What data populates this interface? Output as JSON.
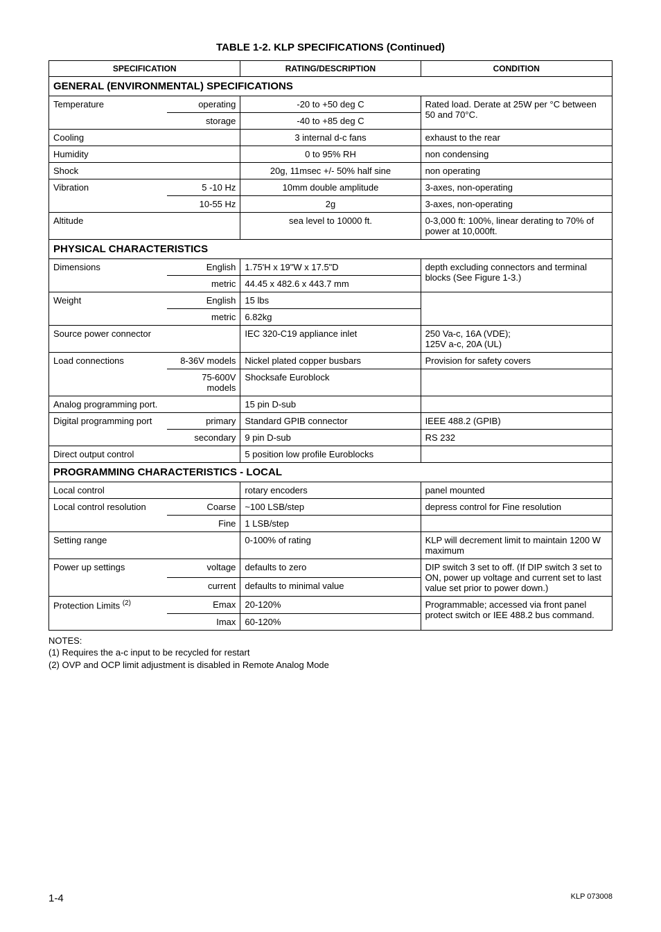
{
  "title": "TABLE 1-2.  KLP SPECIFICATIONS  (Continued)",
  "headers": {
    "spec": "SPECIFICATION",
    "rating": "RATING/DESCRIPTION",
    "condition": "CONDITION"
  },
  "sections": {
    "env": "GENERAL (ENVIRONMENTAL) SPECIFICATIONS",
    "phys": "PHYSICAL CHARACTERISTICS",
    "prog": "PROGRAMMING CHARACTERISTICS - LOCAL"
  },
  "rows": {
    "temp_spec": "Temperature",
    "temp_op_sub": "operating",
    "temp_op_val": "-20 to +50 deg C",
    "temp_cond": "Rated load. Derate at 25W per °C between 50 and 70°C.",
    "temp_st_sub": "storage",
    "temp_st_val": "-40 to +85 deg C",
    "cool_spec": "Cooling",
    "cool_val": "3 internal d-c fans",
    "cool_cond": "exhaust to the rear",
    "hum_spec": "Humidity",
    "hum_val": "0 to 95% RH",
    "hum_cond": "non condensing",
    "shock_spec": "Shock",
    "shock_val": "20g, 11msec +/- 50% half sine",
    "shock_cond": "non operating",
    "vib_spec": "Vibration",
    "vib1_sub": "5 -10 Hz",
    "vib1_val": "10mm double amplitude",
    "vib1_cond": "3-axes, non-operating",
    "vib2_sub": "10-55 Hz",
    "vib2_val": "2g",
    "vib2_cond": "3-axes, non-operating",
    "alt_spec": "Altitude",
    "alt_val": "sea level to 10000 ft.",
    "alt_cond": "0-3,000 ft: 100%, linear derating to 70% of power at 10,000ft.",
    "dim_spec": "Dimensions",
    "dim_en_sub": "English",
    "dim_en_val": "1.75'H x 19\"W x 17.5\"D",
    "dim_cond": "depth excluding connectors and terminal blocks (See Figure 1-3.)",
    "dim_me_sub": "metric",
    "dim_me_val": "44.45 x 482.6 x 443.7 mm",
    "wt_spec": "Weight",
    "wt_en_sub": "English",
    "wt_en_val": "15 lbs",
    "wt_me_sub": "metric",
    "wt_me_val": "6.82kg",
    "src_spec": "Source power connector",
    "src_val": "IEC 320-C19 appliance inlet",
    "src_cond": "250 Va-c, 16A (VDE);\n125V a-c, 20A (UL)",
    "load_spec": "Load connections",
    "load1_sub": "8-36V models",
    "load1_val": "Nickel plated copper busbars",
    "load1_cond": "Provision for safety covers",
    "load2_sub": "75-600V models",
    "load2_val": "Shocksafe Euroblock",
    "ana_spec": "Analog programming port.",
    "ana_val": "15 pin D-sub",
    "dig_spec": "Digital programming port",
    "dig1_sub": "primary",
    "dig1_val": "Standard GPIB connector",
    "dig1_cond": "IEEE 488.2 (GPIB)",
    "dig2_sub": "secondary",
    "dig2_val": "9 pin D-sub",
    "dig2_cond": "RS 232",
    "dout_spec": "Direct output control",
    "dout_val": "5 position low profile Euroblocks",
    "lc_spec": "Local control",
    "lc_val": "rotary encoders",
    "lc_cond": "panel mounted",
    "lcr_spec": "Local control resolution",
    "lcr1_sub": "Coarse",
    "lcr1_val": "~100 LSB/step",
    "lcr1_cond": "depress control for Fine resolution",
    "lcr2_sub": "Fine",
    "lcr2_val": "1 LSB/step",
    "sr_spec": "Setting range",
    "sr_val": "0-100% of rating",
    "sr_cond": "KLP will decrement limit to maintain 1200 W maximum",
    "pu_spec": "Power up settings",
    "pu1_sub": "voltage",
    "pu1_val": "defaults to zero",
    "pu_cond": "DIP switch 3 set to off. (If DIP switch 3 set to ON, power up voltage and current set to last value set prior to power down.)",
    "pu2_sub": "current",
    "pu2_val": "defaults to minimal value",
    "pl_spec": "Protection Limits",
    "pl_sup": "(2)",
    "pl1_sub": "Emax",
    "pl1_val": "20-120%",
    "pl_cond": "Programmable; accessed via front panel protect switch or IEE 488.2 bus command.",
    "pl2_sub": "Imax",
    "pl2_val": "60-120%"
  },
  "notes": {
    "h": "NOTES:",
    "n1": "(1) Requires the a-c input to be recycled for restart",
    "n2": "(2) OVP and OCP limit adjustment is disabled in Remote Analog Mode"
  },
  "footer": {
    "page": "1-4",
    "doc": "KLP  073008"
  }
}
